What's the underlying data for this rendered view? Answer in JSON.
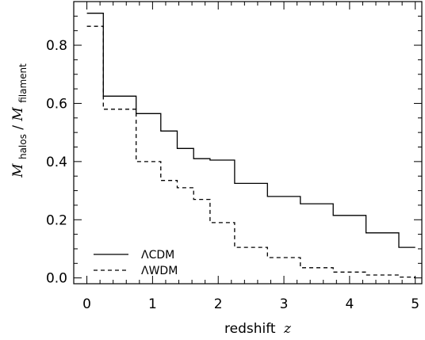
{
  "chart_data": {
    "type": "line",
    "step": true,
    "xlabel": "redshift",
    "xlabel_var": "z",
    "ylabel_main": "M",
    "ylabel_sub1": "halos",
    "ylabel_slash": "/",
    "ylabel_sub2": "filament",
    "xlim": [
      -0.2,
      5.1
    ],
    "ylim": [
      -0.02,
      0.95
    ],
    "x_ticks": [
      0,
      1,
      2,
      3,
      4,
      5
    ],
    "x_tick_labels": [
      "0",
      "1",
      "2",
      "3",
      "4",
      "5"
    ],
    "y_ticks": [
      0.0,
      0.2,
      0.4,
      0.6,
      0.8
    ],
    "y_tick_labels": [
      "0.0",
      "0.2",
      "0.4",
      "0.6",
      "0.8"
    ],
    "grid": false,
    "legend_position": "bottom-left",
    "series": [
      {
        "name": "ΛCDM",
        "dash": "solid",
        "x": [
          0,
          0.25,
          0.75,
          1.125,
          1.375,
          1.625,
          1.875,
          2.25,
          2.75,
          3.25,
          3.75,
          4.25,
          4.75
        ],
        "x_end": 5.0,
        "values": [
          0.91,
          0.625,
          0.565,
          0.505,
          0.445,
          0.41,
          0.405,
          0.325,
          0.28,
          0.255,
          0.215,
          0.155,
          0.105
        ]
      },
      {
        "name": "ΛWDM",
        "dash": "dashed",
        "x": [
          0,
          0.25,
          0.75,
          1.125,
          1.375,
          1.625,
          1.875,
          2.25,
          2.75,
          3.25,
          3.75,
          4.25,
          4.75
        ],
        "x_end": 5.0,
        "values": [
          0.865,
          0.58,
          0.4,
          0.335,
          0.31,
          0.27,
          0.19,
          0.105,
          0.07,
          0.035,
          0.02,
          0.01,
          0.003
        ]
      }
    ]
  }
}
